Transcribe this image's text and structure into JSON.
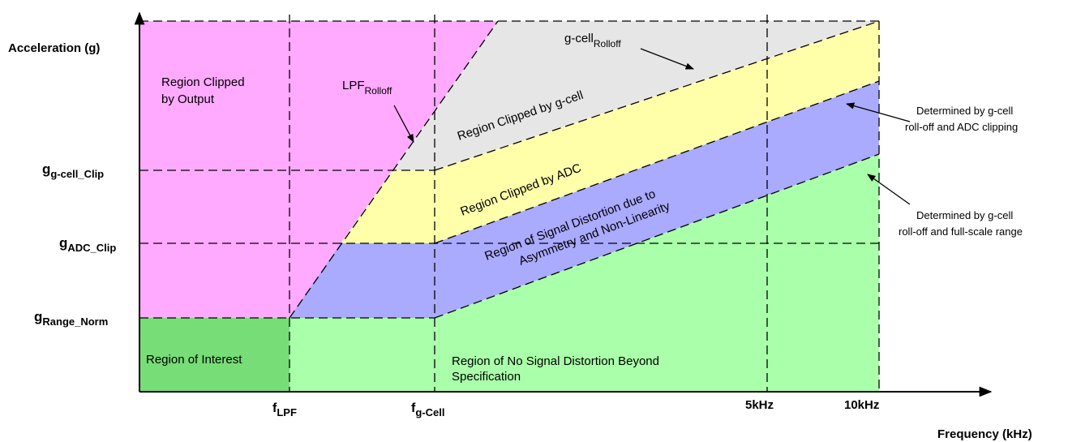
{
  "y_axis": {
    "title": "Acceleration (g)",
    "ticks": {
      "g_cell_clip": {
        "main": "g",
        "sub": "g-cell_Clip"
      },
      "adc_clip": {
        "main": "g",
        "sub": "ADC_Clip"
      },
      "range_norm": {
        "main": "g",
        "sub": "Range_Norm"
      }
    }
  },
  "x_axis": {
    "title": "Frequency (kHz)",
    "ticks": {
      "f_lpf": {
        "main": "f",
        "sub": "LPF"
      },
      "f_gcell": {
        "main": "f",
        "sub": "g-Cell"
      },
      "k5": "5kHz",
      "k10": "10kHz"
    }
  },
  "regions": {
    "clipped_by_output": {
      "line1": "Region Clipped",
      "line2": "by Output",
      "color": "#ffaaff"
    },
    "clipped_by_gcell": {
      "text": "Region Clipped by g-cell",
      "color": "#e6e6e6"
    },
    "clipped_by_adc": {
      "text": "Region Clipped by ADC",
      "color": "#ffffaa"
    },
    "distortion": {
      "line1": "Region of Signal Distortion due to",
      "line2": "Asymmetry and Non-Linearity",
      "color": "#aaaaff"
    },
    "no_distortion": {
      "line1": "Region of No Signal Distortion Beyond",
      "line2": "Specification",
      "color": "#aaffaa"
    },
    "interest": {
      "text": "Region of Interest",
      "color": "#77dd77"
    }
  },
  "annotations": {
    "lpf_rolloff": {
      "main": "LPF",
      "sub": "Rolloff"
    },
    "gcell_rolloff": {
      "main": "g-cell",
      "sub": "Rolloff"
    },
    "adc_note": {
      "line1": "Determined by g-cell",
      "line2": "roll-off and ADC clipping"
    },
    "fullscale_note": {
      "line1": "Determined by g-cell",
      "line2": "roll-off and full-scale range"
    }
  }
}
